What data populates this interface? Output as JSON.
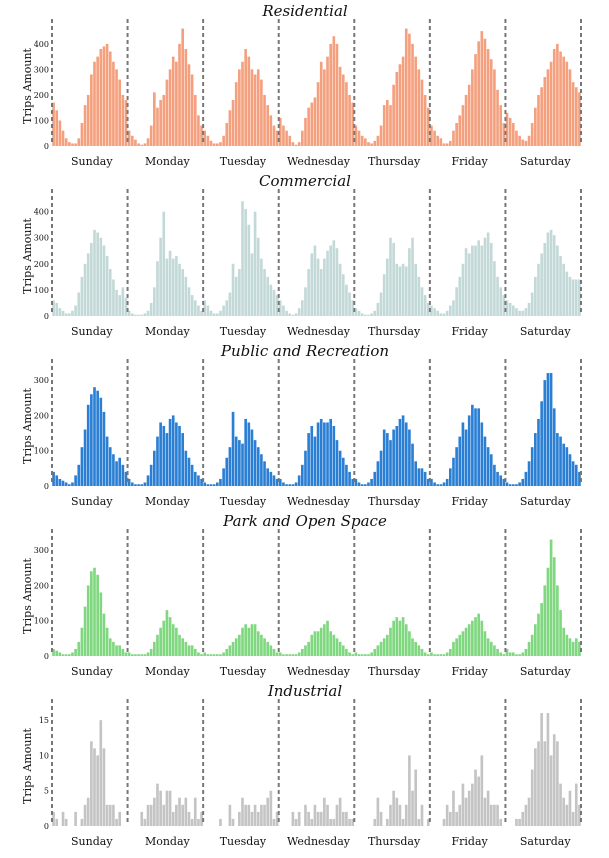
{
  "chart_data": [
    {
      "type": "bar",
      "title": "Residential",
      "ylabel": "Trips Amount",
      "color": "#f4a07e",
      "ylim": [
        0,
        470
      ],
      "yticks": [
        0,
        100,
        200,
        300,
        400
      ],
      "days": [
        "Sunday",
        "Monday",
        "Tuesday",
        "Wednesday",
        "Thursday",
        "Friday",
        "Saturday"
      ],
      "hours_per_day": 24,
      "values": [
        170,
        140,
        100,
        60,
        30,
        15,
        10,
        10,
        30,
        90,
        160,
        200,
        280,
        330,
        350,
        380,
        390,
        400,
        370,
        330,
        300,
        260,
        200,
        180,
        60,
        40,
        25,
        10,
        5,
        10,
        30,
        80,
        210,
        150,
        180,
        200,
        260,
        300,
        350,
        330,
        400,
        460,
        380,
        320,
        280,
        200,
        120,
        80,
        60,
        40,
        20,
        10,
        10,
        15,
        40,
        90,
        140,
        180,
        250,
        300,
        330,
        380,
        350,
        300,
        280,
        300,
        260,
        200,
        160,
        120,
        80,
        60,
        110,
        80,
        60,
        40,
        15,
        5,
        15,
        60,
        110,
        150,
        170,
        190,
        250,
        330,
        300,
        350,
        400,
        430,
        400,
        310,
        280,
        250,
        200,
        170,
        80,
        60,
        40,
        30,
        15,
        10,
        20,
        40,
        80,
        160,
        180,
        160,
        240,
        290,
        320,
        350,
        460,
        440,
        400,
        350,
        300,
        260,
        200,
        150,
        80,
        60,
        40,
        30,
        10,
        10,
        20,
        60,
        90,
        120,
        160,
        200,
        240,
        300,
        360,
        410,
        450,
        420,
        380,
        340,
        300,
        220,
        160,
        90,
        130,
        110,
        90,
        60,
        40,
        25,
        20,
        40,
        90,
        150,
        200,
        230,
        270,
        300,
        330,
        380,
        400,
        370,
        350,
        330,
        300,
        250,
        230,
        210
      ]
    },
    {
      "type": "bar",
      "title": "Commercial",
      "ylabel": "Trips Amount",
      "color": "#c3d9d8",
      "ylim": [
        0,
        460
      ],
      "yticks": [
        0,
        100,
        200,
        300,
        400
      ],
      "days": [
        "Sunday",
        "Monday",
        "Tuesday",
        "Wednesday",
        "Thursday",
        "Friday",
        "Saturday"
      ],
      "hours_per_day": 24,
      "values": [
        60,
        50,
        30,
        20,
        10,
        10,
        20,
        40,
        90,
        150,
        200,
        240,
        280,
        330,
        320,
        300,
        270,
        230,
        180,
        140,
        100,
        80,
        110,
        70,
        20,
        10,
        5,
        5,
        5,
        10,
        20,
        50,
        110,
        210,
        300,
        400,
        220,
        250,
        220,
        230,
        200,
        180,
        150,
        110,
        80,
        60,
        40,
        20,
        60,
        40,
        20,
        10,
        10,
        20,
        40,
        60,
        90,
        200,
        150,
        180,
        440,
        410,
        350,
        240,
        400,
        300,
        220,
        180,
        150,
        120,
        100,
        80,
        60,
        40,
        20,
        10,
        5,
        10,
        30,
        60,
        110,
        180,
        240,
        270,
        220,
        180,
        220,
        250,
        270,
        290,
        260,
        200,
        160,
        120,
        90,
        60,
        30,
        20,
        10,
        5,
        5,
        10,
        20,
        50,
        90,
        160,
        220,
        300,
        280,
        200,
        190,
        200,
        190,
        260,
        300,
        200,
        150,
        110,
        80,
        50,
        40,
        30,
        20,
        10,
        10,
        20,
        40,
        60,
        110,
        150,
        200,
        260,
        240,
        270,
        270,
        290,
        270,
        300,
        320,
        280,
        210,
        150,
        110,
        80,
        60,
        50,
        40,
        30,
        20,
        20,
        30,
        50,
        90,
        150,
        200,
        240,
        280,
        320,
        330,
        310,
        270,
        230,
        200,
        170,
        150,
        140,
        140,
        140
      ]
    },
    {
      "type": "bar",
      "title": "Public and Recreation",
      "ylabel": "Trips Amount",
      "color": "#2a7fd4",
      "ylim": [
        0,
        340
      ],
      "yticks": [
        0,
        100,
        200,
        300
      ],
      "days": [
        "Sunday",
        "Monday",
        "Tuesday",
        "Wednesday",
        "Thursday",
        "Friday",
        "Saturday"
      ],
      "hours_per_day": 24,
      "values": [
        40,
        30,
        20,
        15,
        10,
        5,
        10,
        30,
        60,
        110,
        160,
        230,
        260,
        280,
        270,
        250,
        210,
        140,
        110,
        90,
        70,
        80,
        60,
        40,
        20,
        10,
        5,
        5,
        5,
        10,
        30,
        60,
        100,
        140,
        180,
        170,
        150,
        190,
        200,
        180,
        170,
        150,
        100,
        80,
        60,
        40,
        30,
        20,
        10,
        5,
        5,
        5,
        10,
        20,
        50,
        80,
        110,
        210,
        140,
        130,
        120,
        190,
        180,
        160,
        130,
        110,
        90,
        70,
        50,
        40,
        30,
        20,
        20,
        10,
        5,
        5,
        5,
        10,
        30,
        60,
        100,
        150,
        170,
        140,
        180,
        190,
        180,
        180,
        190,
        170,
        130,
        100,
        80,
        60,
        40,
        20,
        20,
        10,
        5,
        5,
        10,
        20,
        40,
        70,
        100,
        160,
        150,
        130,
        160,
        170,
        190,
        200,
        180,
        160,
        120,
        70,
        50,
        50,
        40,
        20,
        20,
        10,
        5,
        5,
        10,
        20,
        50,
        80,
        110,
        140,
        180,
        160,
        200,
        230,
        220,
        220,
        180,
        140,
        110,
        90,
        60,
        40,
        30,
        20,
        10,
        5,
        5,
        5,
        10,
        20,
        40,
        70,
        110,
        150,
        190,
        240,
        300,
        320,
        320,
        220,
        150,
        140,
        120,
        110,
        90,
        70,
        60,
        40
      ]
    },
    {
      "type": "bar",
      "title": "Park and Open Space",
      "ylabel": "Trips Amount",
      "color": "#7fd77f",
      "ylim": [
        0,
        340
      ],
      "yticks": [
        0,
        100,
        200,
        300
      ],
      "days": [
        "Sunday",
        "Monday",
        "Tuesday",
        "Wednesday",
        "Thursday",
        "Friday",
        "Saturday"
      ],
      "hours_per_day": 24,
      "values": [
        20,
        15,
        10,
        5,
        5,
        5,
        10,
        20,
        40,
        80,
        140,
        200,
        240,
        250,
        230,
        180,
        120,
        80,
        50,
        40,
        30,
        30,
        20,
        10,
        10,
        5,
        5,
        5,
        5,
        5,
        10,
        20,
        40,
        60,
        80,
        100,
        130,
        110,
        90,
        80,
        60,
        50,
        40,
        30,
        30,
        20,
        10,
        5,
        10,
        5,
        5,
        5,
        5,
        5,
        10,
        20,
        30,
        40,
        50,
        60,
        80,
        90,
        80,
        90,
        90,
        70,
        60,
        50,
        40,
        30,
        20,
        10,
        10,
        5,
        5,
        5,
        5,
        5,
        10,
        20,
        30,
        40,
        60,
        70,
        70,
        80,
        90,
        100,
        70,
        60,
        50,
        40,
        30,
        20,
        10,
        5,
        10,
        5,
        5,
        5,
        5,
        10,
        20,
        30,
        40,
        50,
        60,
        80,
        100,
        110,
        100,
        110,
        90,
        70,
        50,
        40,
        30,
        20,
        10,
        5,
        10,
        5,
        5,
        5,
        5,
        10,
        20,
        40,
        50,
        60,
        70,
        80,
        90,
        100,
        110,
        120,
        100,
        70,
        50,
        40,
        30,
        20,
        10,
        5,
        20,
        10,
        10,
        5,
        5,
        10,
        20,
        40,
        60,
        90,
        120,
        150,
        200,
        250,
        330,
        280,
        200,
        130,
        80,
        60,
        50,
        40,
        50,
        40
      ]
    },
    {
      "type": "bar",
      "title": "Industrial",
      "ylabel": "Trips Amount",
      "color": "#c4c4c4",
      "ylim": [
        0,
        17
      ],
      "yticks": [
        0,
        5,
        10,
        15
      ],
      "days": [
        "Sunday",
        "Monday",
        "Tuesday",
        "Wednesday",
        "Thursday",
        "Friday",
        "Saturday"
      ],
      "hours_per_day": 24,
      "values": [
        2,
        1,
        0,
        2,
        1,
        0,
        0,
        2,
        0,
        1,
        3,
        4,
        12,
        11,
        10,
        15,
        11,
        3,
        3,
        3,
        1,
        2,
        0,
        0,
        0,
        0,
        0,
        0,
        2,
        1,
        3,
        3,
        4,
        6,
        5,
        3,
        5,
        5,
        2,
        3,
        4,
        3,
        4,
        2,
        1,
        4,
        1,
        2,
        0,
        0,
        0,
        0,
        0,
        1,
        0,
        0,
        3,
        1,
        0,
        2,
        4,
        3,
        3,
        2,
        3,
        2,
        3,
        3,
        4,
        5,
        1,
        2,
        0,
        0,
        0,
        0,
        2,
        1,
        2,
        0,
        3,
        2,
        1,
        3,
        2,
        2,
        4,
        3,
        1,
        1,
        3,
        4,
        2,
        2,
        1,
        1,
        0,
        0,
        0,
        0,
        0,
        0,
        1,
        4,
        2,
        0,
        1,
        3,
        5,
        4,
        3,
        1,
        3,
        10,
        5,
        8,
        1,
        3,
        0,
        1,
        0,
        0,
        0,
        0,
        1,
        3,
        2,
        5,
        2,
        3,
        6,
        4,
        5,
        6,
        8,
        7,
        10,
        4,
        5,
        3,
        3,
        3,
        1,
        0,
        0,
        0,
        0,
        1,
        1,
        2,
        3,
        4,
        8,
        11,
        12,
        16,
        12,
        16,
        10,
        13,
        12,
        6,
        4,
        3,
        5,
        2,
        6,
        3
      ]
    }
  ]
}
